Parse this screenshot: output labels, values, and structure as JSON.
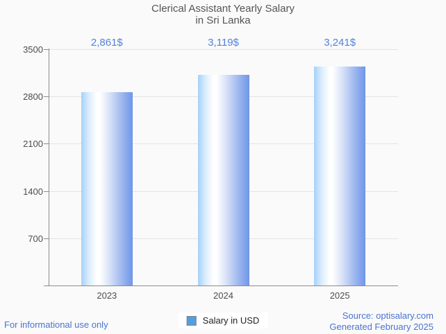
{
  "title": {
    "line1": "Clerical Assistant Yearly Salary",
    "line2": "in Sri Lanka"
  },
  "chart_data": {
    "type": "bar",
    "title": "Clerical Assistant Yearly Salary in Sri Lanka",
    "categories": [
      "2023",
      "2024",
      "2025"
    ],
    "values": [
      2861,
      3119,
      3241
    ],
    "value_labels": [
      "2,861$",
      "3,119$",
      "3,241$"
    ],
    "series": [
      {
        "name": "Salary in USD",
        "values": [
          2861,
          3119,
          3241
        ]
      }
    ],
    "xlabel": "",
    "ylabel": "",
    "y_ticks": [
      3500,
      2800,
      2100,
      1400,
      700
    ],
    "ylim": [
      0,
      3500
    ],
    "grid": true,
    "legend_position": "bottom"
  },
  "legend": {
    "label": "Salary in USD"
  },
  "footer": {
    "left": "For informational use only",
    "source": "Source: optisalary.com",
    "generated": "Generated February 2025"
  },
  "colors": {
    "background": "#fafafa",
    "title_text": "#545454",
    "axis_text": "#4d4d4d",
    "axis_line": "#8b8b8b",
    "gridline": "#e3e3e3",
    "value_label_text": "#5081e0",
    "footer_text": "#4a73d2",
    "bar_light": "#a4d1fb",
    "bar_dark": "#6e96e8",
    "legend_swatch": "#569cdf"
  }
}
